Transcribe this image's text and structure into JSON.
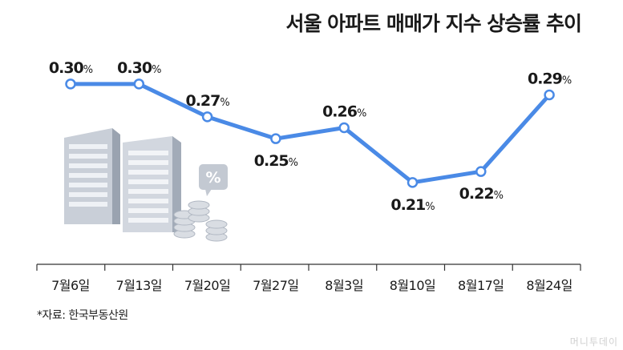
{
  "chart_data": {
    "type": "line",
    "title": "서울 아파트 매매가 지수 상승률 추이",
    "categories": [
      "7월6일",
      "7월13일",
      "7월20일",
      "7월27일",
      "8월3일",
      "8월10일",
      "8월17일",
      "8월24일"
    ],
    "values": [
      0.3,
      0.3,
      0.27,
      0.25,
      0.26,
      0.21,
      0.22,
      0.29
    ],
    "value_labels": [
      "0.30",
      "0.30",
      "0.27",
      "0.25",
      "0.26",
      "0.21",
      "0.22",
      "0.29"
    ],
    "value_unit": "%",
    "label_position": [
      "above",
      "above",
      "above",
      "below",
      "above",
      "below",
      "below",
      "above"
    ],
    "ylim": [
      0.185,
      0.305
    ],
    "xlabel": "",
    "ylabel": "",
    "grid": false,
    "line_color": "#4a8ae6"
  },
  "source": "*자료: 한국부동산원",
  "watermark": "머니투데이"
}
